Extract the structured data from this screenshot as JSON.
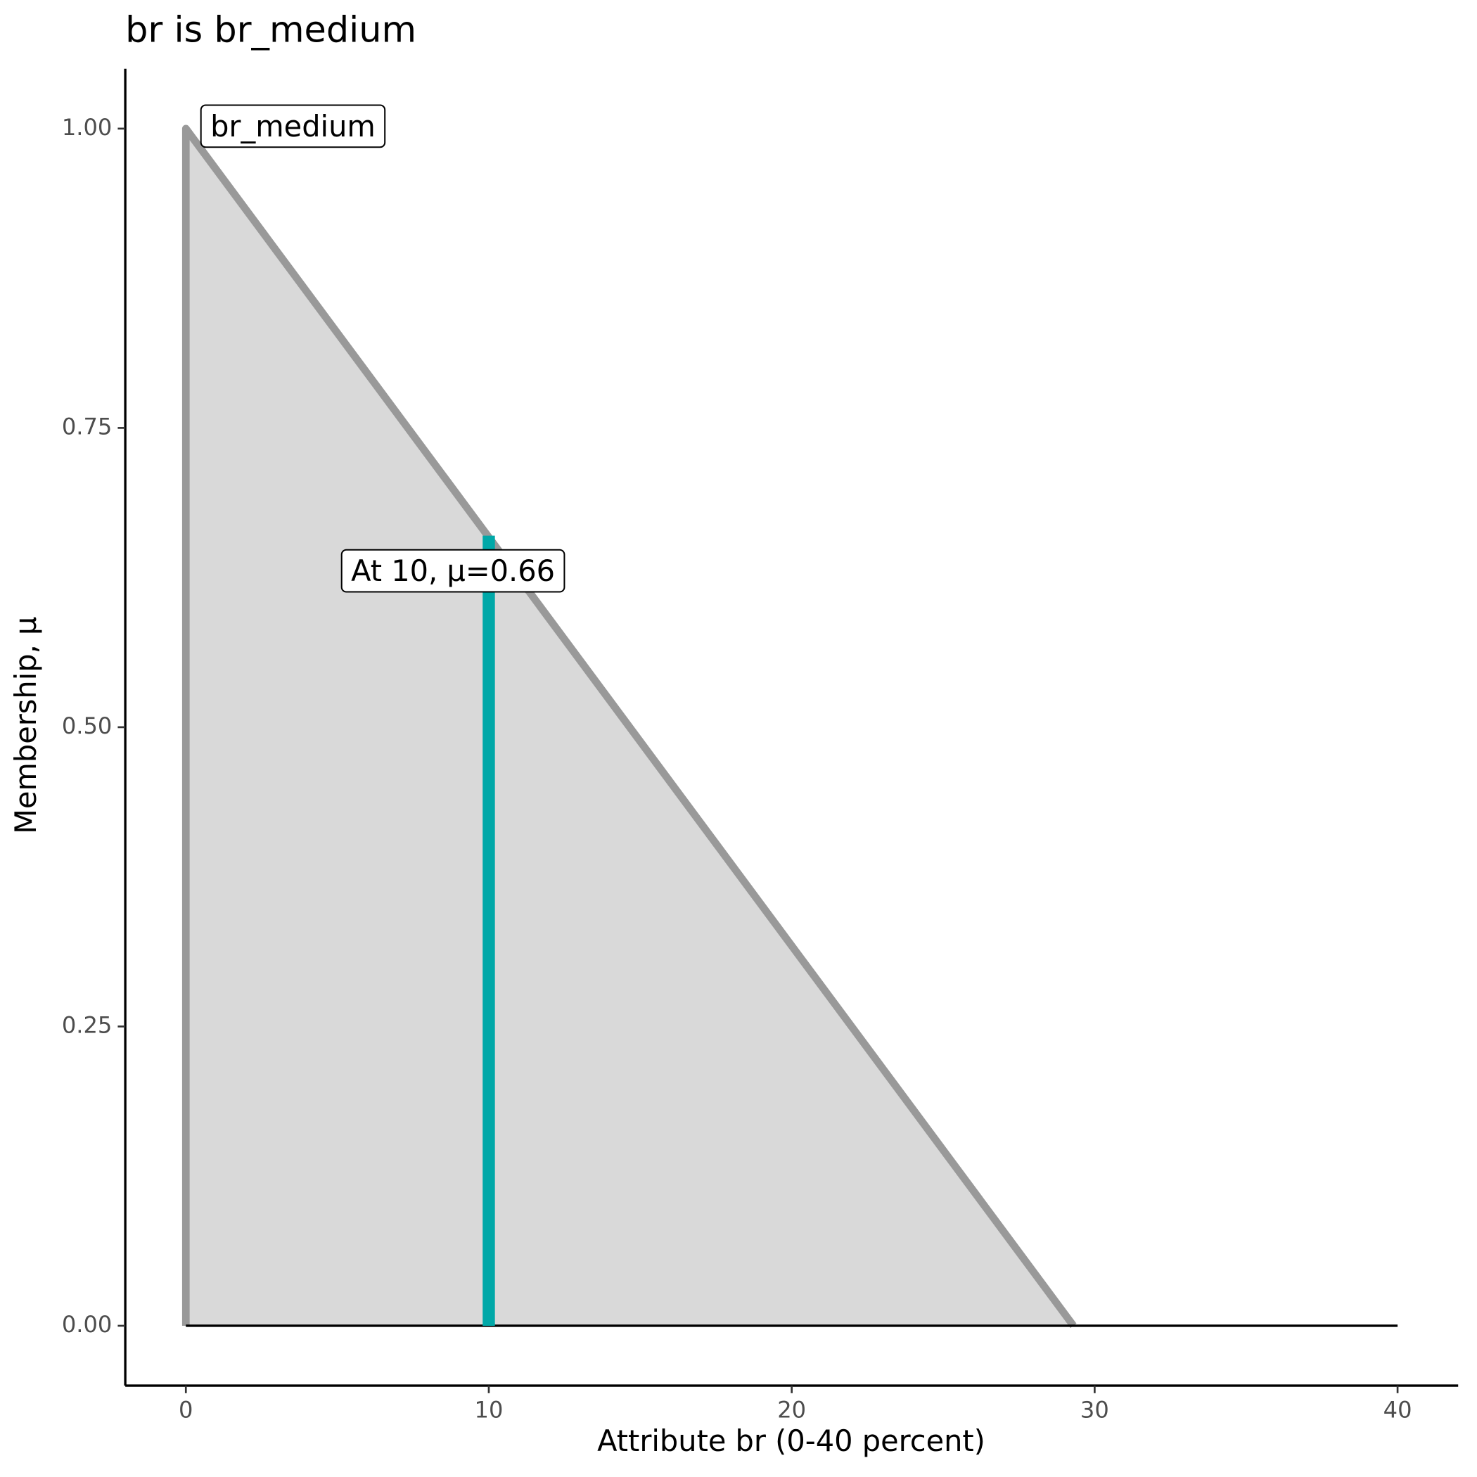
{
  "chart_data": {
    "type": "area",
    "title": "br is br_medium",
    "x_label": "Attribute br (0-40 percent)",
    "y_label": "Membership, μ",
    "series": [
      {
        "name": "br_medium",
        "color": "#999999",
        "fill": "#d9d9d9",
        "x": [
          0,
          0,
          29.3
        ],
        "values": [
          0,
          1,
          0
        ]
      }
    ],
    "baseline": {
      "color": "#000000",
      "x": [
        0,
        40
      ],
      "values": [
        0,
        0
      ]
    },
    "marker": {
      "color": "#00a8a8",
      "x": 10,
      "value": 0.66,
      "label": "At 10, μ=0.66"
    },
    "xlim": [
      -2,
      42
    ],
    "xticks": [
      0,
      10,
      20,
      30,
      40
    ],
    "ylim": [
      -0.05,
      1.05
    ],
    "yticks": [
      {
        "value": 0,
        "label": "0.00"
      },
      {
        "value": 0.25,
        "label": "0.25"
      },
      {
        "value": 0.5,
        "label": "0.50"
      },
      {
        "value": 0.75,
        "label": "0.75"
      },
      {
        "value": 1,
        "label": "1.00"
      }
    ]
  }
}
